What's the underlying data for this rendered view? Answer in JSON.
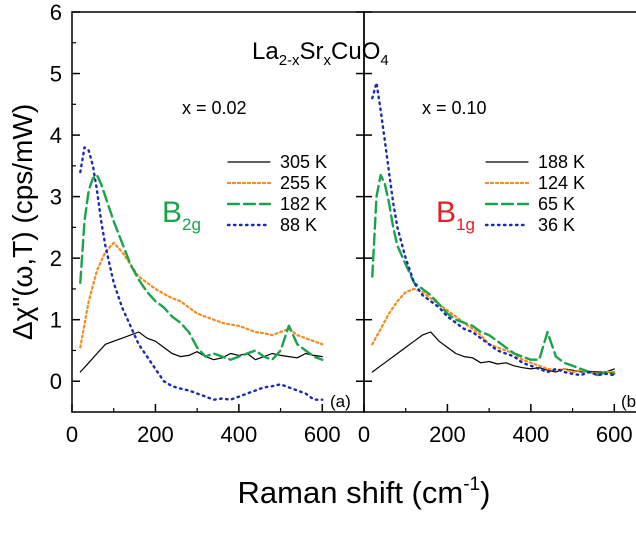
{
  "chart_data": [
    {
      "type": "line",
      "panel_label": "(a)",
      "doping": "x = 0.02",
      "symmetry": {
        "main": "B",
        "sub": "2g",
        "color": "#1aa34a"
      },
      "compound": {
        "p1": "La",
        "s1": "2-x",
        "p2": "Sr",
        "s2": "x",
        "p3": "CuO",
        "s3": "4"
      },
      "xlim": [
        0,
        700
      ],
      "ylim": [
        -0.5,
        6
      ],
      "xticks": [
        0,
        200,
        400,
        600
      ],
      "series": [
        {
          "name": "305 K",
          "color": "#000000",
          "dash": "none",
          "width": 1.2,
          "x": [
            20,
            40,
            60,
            80,
            100,
            120,
            140,
            160,
            180,
            200,
            220,
            240,
            260,
            280,
            300,
            320,
            340,
            360,
            380,
            400,
            420,
            440,
            460,
            480,
            500,
            520,
            540,
            560,
            580,
            600
          ],
          "y": [
            0.15,
            0.3,
            0.45,
            0.6,
            0.65,
            0.7,
            0.75,
            0.8,
            0.7,
            0.65,
            0.55,
            0.45,
            0.4,
            0.42,
            0.48,
            0.4,
            0.35,
            0.38,
            0.45,
            0.42,
            0.45,
            0.35,
            0.4,
            0.45,
            0.42,
            0.4,
            0.38,
            0.45,
            0.42,
            0.4
          ]
        },
        {
          "name": "255 K",
          "color": "#f28c1e",
          "dash": "2,3",
          "width": 2.2,
          "x": [
            20,
            40,
            60,
            80,
            100,
            120,
            140,
            160,
            180,
            200,
            220,
            240,
            260,
            280,
            300,
            320,
            340,
            360,
            380,
            400,
            420,
            440,
            460,
            480,
            500,
            520,
            540,
            560,
            580,
            600
          ],
          "y": [
            0.55,
            1.3,
            1.8,
            2.1,
            2.25,
            2.1,
            1.9,
            1.7,
            1.6,
            1.5,
            1.42,
            1.35,
            1.3,
            1.2,
            1.1,
            1.05,
            1.0,
            0.95,
            0.92,
            0.9,
            0.85,
            0.8,
            0.78,
            0.75,
            0.8,
            0.85,
            0.75,
            0.7,
            0.65,
            0.6
          ]
        },
        {
          "name": "182 K",
          "color": "#1aa34a",
          "dash": "11,5",
          "width": 2.4,
          "x": [
            20,
            30,
            40,
            50,
            60,
            70,
            80,
            100,
            120,
            140,
            160,
            180,
            200,
            220,
            240,
            260,
            280,
            300,
            320,
            340,
            360,
            380,
            400,
            420,
            440,
            460,
            480,
            500,
            520,
            540,
            560,
            580,
            600
          ],
          "y": [
            1.6,
            2.6,
            3.1,
            3.3,
            3.35,
            3.2,
            3.0,
            2.6,
            2.25,
            1.9,
            1.65,
            1.45,
            1.3,
            1.2,
            1.05,
            0.95,
            0.8,
            0.55,
            0.4,
            0.45,
            0.4,
            0.35,
            0.4,
            0.45,
            0.5,
            0.4,
            0.35,
            0.5,
            0.9,
            0.6,
            0.5,
            0.4,
            0.35
          ]
        },
        {
          "name": "88 K",
          "color": "#1a2bb0",
          "dash": "1.5,4.5",
          "width": 2.4,
          "x": [
            20,
            30,
            40,
            50,
            60,
            70,
            80,
            100,
            120,
            140,
            160,
            180,
            200,
            220,
            240,
            260,
            280,
            300,
            320,
            340,
            360,
            380,
            400,
            420,
            440,
            460,
            480,
            500,
            520,
            540,
            560,
            580,
            600
          ],
          "y": [
            3.4,
            3.8,
            3.75,
            3.5,
            3.1,
            2.6,
            2.2,
            1.6,
            1.2,
            0.9,
            0.6,
            0.4,
            0.2,
            0.0,
            -0.08,
            -0.12,
            -0.15,
            -0.2,
            -0.25,
            -0.3,
            -0.28,
            -0.3,
            -0.25,
            -0.2,
            -0.15,
            -0.1,
            -0.08,
            -0.05,
            -0.1,
            -0.15,
            -0.2,
            -0.3,
            -0.3
          ]
        }
      ]
    },
    {
      "type": "line",
      "panel_label": "(b)",
      "doping": "x = 0.10",
      "symmetry": {
        "main": "B",
        "sub": "1g",
        "color": "#e02027"
      },
      "xlim": [
        0,
        700
      ],
      "ylim": [
        -0.5,
        6
      ],
      "xticks": [
        0,
        200,
        400,
        600
      ],
      "series": [
        {
          "name": "188 K",
          "color": "#000000",
          "dash": "none",
          "width": 1.2,
          "x": [
            20,
            40,
            60,
            80,
            100,
            120,
            140,
            160,
            180,
            200,
            220,
            240,
            260,
            280,
            300,
            320,
            340,
            360,
            380,
            400,
            420,
            440,
            460,
            480,
            500,
            520,
            540,
            560,
            580,
            600
          ],
          "y": [
            0.15,
            0.25,
            0.35,
            0.45,
            0.55,
            0.65,
            0.75,
            0.8,
            0.65,
            0.55,
            0.45,
            0.4,
            0.38,
            0.3,
            0.32,
            0.28,
            0.3,
            0.25,
            0.22,
            0.2,
            0.22,
            0.18,
            0.15,
            0.2,
            0.18,
            0.15,
            0.16,
            0.15,
            0.15,
            0.2
          ]
        },
        {
          "name": "124 K",
          "color": "#f28c1e",
          "dash": "2,3",
          "width": 2.2,
          "x": [
            20,
            40,
            60,
            80,
            100,
            120,
            140,
            160,
            180,
            200,
            220,
            240,
            260,
            280,
            300,
            320,
            340,
            360,
            380,
            400,
            420,
            440,
            460,
            480,
            500,
            520,
            540,
            560,
            580,
            600
          ],
          "y": [
            0.6,
            0.85,
            1.1,
            1.3,
            1.45,
            1.5,
            1.45,
            1.35,
            1.25,
            1.15,
            1.05,
            0.95,
            0.85,
            0.75,
            0.6,
            0.55,
            0.5,
            0.45,
            0.35,
            0.3,
            0.25,
            0.2,
            0.18,
            0.2,
            0.15,
            0.18,
            0.15,
            0.12,
            0.15,
            0.15
          ]
        },
        {
          "name": "65 K",
          "color": "#1aa34a",
          "dash": "11,5",
          "width": 2.4,
          "x": [
            20,
            30,
            40,
            50,
            60,
            70,
            80,
            100,
            120,
            140,
            160,
            180,
            200,
            220,
            240,
            260,
            280,
            300,
            320,
            340,
            360,
            380,
            400,
            420,
            440,
            460,
            480,
            500,
            520,
            540,
            560,
            580,
            600
          ],
          "y": [
            1.7,
            3.0,
            3.35,
            3.2,
            2.9,
            2.5,
            2.2,
            1.9,
            1.6,
            1.5,
            1.4,
            1.25,
            1.1,
            1.0,
            0.95,
            0.9,
            0.8,
            0.75,
            0.65,
            0.55,
            0.45,
            0.4,
            0.35,
            0.35,
            0.8,
            0.4,
            0.3,
            0.25,
            0.2,
            0.15,
            0.1,
            0.15,
            0.12
          ]
        },
        {
          "name": "36 K",
          "color": "#1a2bb0",
          "dash": "1.5,4.5",
          "width": 2.4,
          "x": [
            20,
            30,
            40,
            50,
            60,
            70,
            80,
            100,
            120,
            140,
            160,
            180,
            200,
            220,
            240,
            260,
            280,
            300,
            320,
            340,
            360,
            380,
            400,
            420,
            440,
            460,
            480,
            500,
            520,
            540,
            560,
            580,
            600
          ],
          "y": [
            4.6,
            4.85,
            4.4,
            3.9,
            3.4,
            2.9,
            2.5,
            2.0,
            1.6,
            1.4,
            1.3,
            1.2,
            1.05,
            0.95,
            0.85,
            0.8,
            0.7,
            0.6,
            0.5,
            0.45,
            0.4,
            0.3,
            0.25,
            0.2,
            0.15,
            0.2,
            0.15,
            0.12,
            0.1,
            0.15,
            0.1,
            0.12,
            0.1
          ]
        }
      ]
    }
  ],
  "axes": {
    "ylabel": "Δχ\"(ω,T) (cps/mW)",
    "xlabel": "Raman shift (cm",
    "xlabel_sup": "-1",
    "xlabel_end": ")",
    "yticks": [
      0,
      1,
      2,
      3,
      4,
      5,
      6
    ]
  }
}
